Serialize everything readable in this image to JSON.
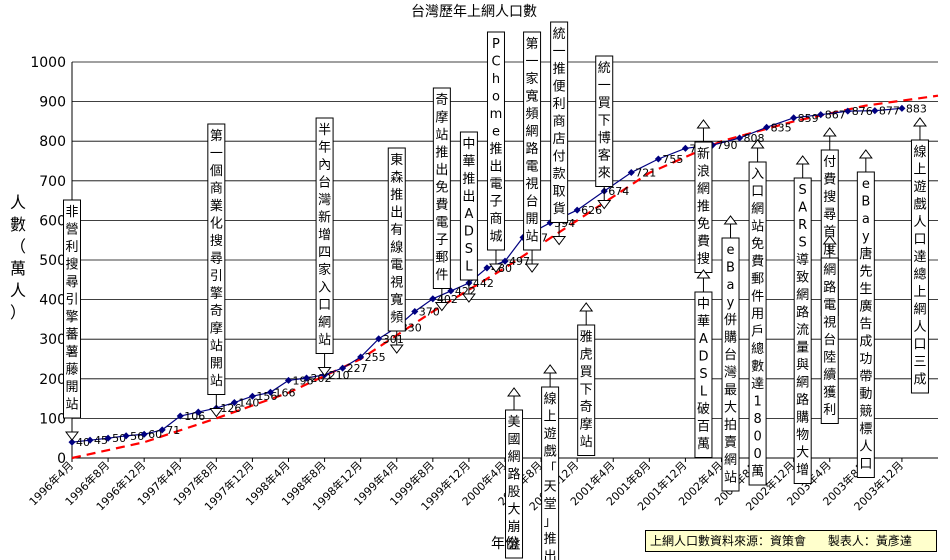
{
  "chart_data": {
    "type": "line",
    "title": "台灣歷年上網人口數",
    "xlabel": "年份",
    "ylabel": "人數（萬人）",
    "ylim": [
      0,
      1000
    ],
    "yticks": [
      0,
      100,
      200,
      300,
      400,
      500,
      600,
      700,
      800,
      900,
      1000
    ],
    "grid": true,
    "x_ticks": [
      "1996年4月",
      "1996年8月",
      "1996年12月",
      "1997年4月",
      "1997年8月",
      "1997年12月",
      "1998年4月",
      "1998年8月",
      "1998年12月",
      "1999年4月",
      "1999年8月",
      "1999年12月",
      "2000年4月",
      "2000年8月",
      "2000年12月",
      "2001年4月",
      "2001年8月",
      "2001年12月",
      "2002年4月",
      "2002年8月",
      "2002年12月",
      "2003年4月",
      "2003年8月",
      "2003年12月"
    ],
    "series": [
      {
        "color": "#000080",
        "points": [
          {
            "t": 0,
            "v": 40,
            "label": "40"
          },
          {
            "t": 2,
            "v": 45,
            "label": "45"
          },
          {
            "t": 4,
            "v": 50,
            "label": "50"
          },
          {
            "t": 6,
            "v": 56,
            "label": "56"
          },
          {
            "t": 8,
            "v": 60,
            "label": "60"
          },
          {
            "t": 10,
            "v": 71,
            "label": "71"
          },
          {
            "t": 12,
            "v": 106,
            "label": "106"
          },
          {
            "t": 14,
            "v": 116,
            "label": ""
          },
          {
            "t": 16,
            "v": 126,
            "label": "126"
          },
          {
            "t": 18,
            "v": 140,
            "label": "140"
          },
          {
            "t": 20,
            "v": 156,
            "label": "156"
          },
          {
            "t": 22,
            "v": 166,
            "label": "166"
          },
          {
            "t": 24,
            "v": 196,
            "label": "196"
          },
          {
            "t": 26,
            "v": 202,
            "label": "202"
          },
          {
            "t": 28,
            "v": 210,
            "label": "210"
          },
          {
            "t": 30,
            "v": 227,
            "label": "227"
          },
          {
            "t": 32,
            "v": 255,
            "label": "255"
          },
          {
            "t": 34,
            "v": 301,
            "label": "301"
          },
          {
            "t": 36,
            "v": 330,
            "label": "330"
          },
          {
            "t": 38,
            "v": 370,
            "label": "370"
          },
          {
            "t": 40,
            "v": 402,
            "label": "402"
          },
          {
            "t": 42,
            "v": 422,
            "label": "422"
          },
          {
            "t": 44,
            "v": 442,
            "label": "442"
          },
          {
            "t": 46,
            "v": 480,
            "label": "480"
          },
          {
            "t": 48,
            "v": 497,
            "label": "497"
          },
          {
            "t": 50,
            "v": 557,
            "label": "557"
          },
          {
            "t": 53,
            "v": 594,
            "label": "594"
          },
          {
            "t": 56,
            "v": 626,
            "label": "626"
          },
          {
            "t": 59,
            "v": 674,
            "label": "674"
          },
          {
            "t": 62,
            "v": 721,
            "label": "721"
          },
          {
            "t": 65,
            "v": 755,
            "label": "755"
          },
          {
            "t": 68,
            "v": 782,
            "label": "782"
          },
          {
            "t": 71,
            "v": 790,
            "label": "790"
          },
          {
            "t": 74,
            "v": 808,
            "label": "808"
          },
          {
            "t": 77,
            "v": 835,
            "label": "835"
          },
          {
            "t": 80,
            "v": 859,
            "label": "859"
          },
          {
            "t": 83,
            "v": 867,
            "label": "867"
          },
          {
            "t": 86,
            "v": 876,
            "label": "876"
          },
          {
            "t": 89,
            "v": 877,
            "label": "877"
          },
          {
            "t": 92,
            "v": 883,
            "label": "883"
          }
        ]
      },
      {
        "style": "dashed",
        "color": "#ff0000",
        "points": [
          {
            "t": 0,
            "v": 0
          },
          {
            "t": 8,
            "v": 40
          },
          {
            "t": 16,
            "v": 100
          },
          {
            "t": 24,
            "v": 165
          },
          {
            "t": 32,
            "v": 250
          },
          {
            "t": 40,
            "v": 370
          },
          {
            "t": 48,
            "v": 480
          },
          {
            "t": 56,
            "v": 600
          },
          {
            "t": 64,
            "v": 720
          },
          {
            "t": 72,
            "v": 800
          },
          {
            "t": 80,
            "v": 850
          },
          {
            "t": 88,
            "v": 890
          },
          {
            "t": 96,
            "v": 915
          }
        ]
      }
    ],
    "annotations": [
      {
        "text": "非營利搜尋引擎蕃薯藤開站",
        "t": 0,
        "dir": "down"
      },
      {
        "text": "第一個商業化搜尋引擎奇摩站開站",
        "t": 16,
        "dir": "down"
      },
      {
        "text": "半年內台灣新增四家入口網站",
        "t": 28,
        "dir": "down"
      },
      {
        "text": "東森推出有線電視寬頻",
        "t": 36,
        "dir": "down"
      },
      {
        "text": "奇摩站推出免費電子郵件",
        "t": 41,
        "dir": "down"
      },
      {
        "text": "中華推出ADSL",
        "t": 44,
        "dir": "down"
      },
      {
        "text": "PChome推出電子商城",
        "t": 47,
        "dir": "down"
      },
      {
        "text": "第一家寬頻網路電視台開站",
        "t": 51,
        "dir": "down"
      },
      {
        "text": "統一推便利商店付款取貨",
        "t": 54,
        "dir": "down"
      },
      {
        "text": "統一買下博客來",
        "t": 59,
        "dir": "down"
      },
      {
        "text": "美國網路股大崩盤",
        "t": 49,
        "dir": "up"
      },
      {
        "text": "線上遊戲「天堂」推出",
        "t": 53,
        "dir": "up"
      },
      {
        "text": "雅虎買下奇摩站",
        "t": 57,
        "dir": "up"
      },
      {
        "text": "新浪網推免費搜",
        "t": 70,
        "dir": "up"
      },
      {
        "text": "中華ADSL破百萬",
        "t": 70,
        "dir": "up"
      },
      {
        "text": "eBay併購台灣最大拍賣網站",
        "t": 73,
        "dir": "up"
      },
      {
        "text": "入口網站免費郵件用戶總數達1800萬",
        "t": 76,
        "dir": "up"
      },
      {
        "text": "SARS導致網路流量與網路購物大增",
        "t": 81,
        "dir": "up"
      },
      {
        "text": "付費搜尋首度負成長",
        "t": 84,
        "dir": "up"
      },
      {
        "text": "網路電視台陸續獲利",
        "t": 84,
        "dir": "up"
      },
      {
        "text": "eBay唐先生廣告成功帶動競標人口",
        "t": 88,
        "dir": "up"
      },
      {
        "text": "線上遊戲人口達總上網人口三成",
        "t": 94,
        "dir": "up"
      }
    ]
  },
  "footer": {
    "source": "上網人口數資料來源：資策會",
    "author": "製表人：黃彥達"
  }
}
